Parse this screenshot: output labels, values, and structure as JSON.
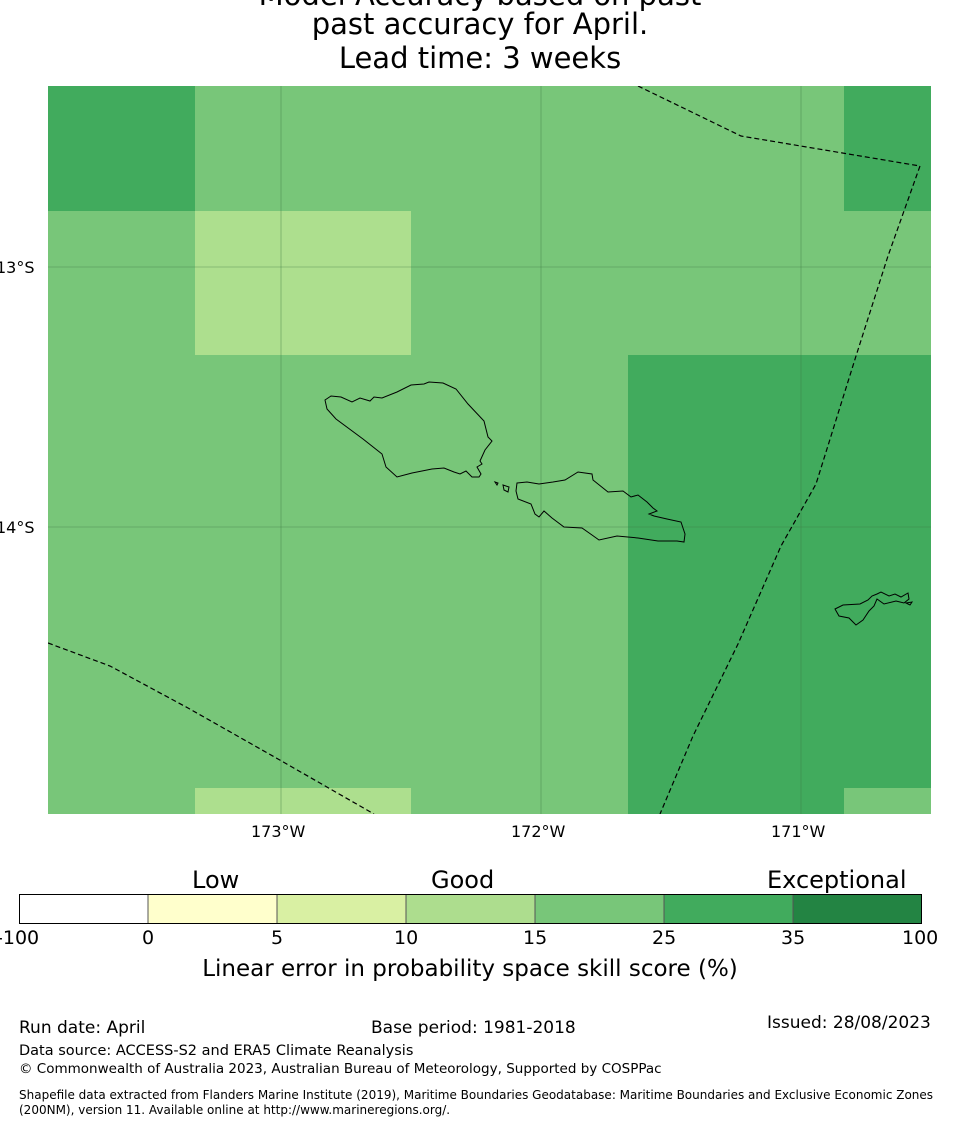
{
  "title": {
    "line1": "Model Accuracy based on past",
    "line2": "past accuracy for April.",
    "line3": "Lead time: 3 weeks"
  },
  "map": {
    "lat_labels": [
      "13°S",
      "14°S"
    ],
    "lon_labels": [
      "173°W",
      "172°W",
      "171°W"
    ],
    "grid_colors": {
      "skill_10_15": "#addf8e",
      "skill_15_25": "#78c679",
      "skill_25_35": "#41ab5d"
    }
  },
  "colorbar": {
    "categories": [
      "Low",
      "Good",
      "Exceptional"
    ],
    "ticks": [
      "-100",
      "0",
      "5",
      "10",
      "15",
      "25",
      "35",
      "100"
    ],
    "colors": [
      "#ffffff",
      "#ffffcc",
      "#d9f0a3",
      "#addd8e",
      "#78c679",
      "#41ab5d",
      "#238443"
    ],
    "label": "Linear error in probability space skill score (%)"
  },
  "footer": {
    "run_date": "Run date: April",
    "base_period": "Base period: 1981-2018",
    "issued": "Issued: 28/08/2023",
    "data_source": "Data source: ACCESS-S2 and ERA5 Climate Reanalysis",
    "copyright": "© Commonwealth of Australia 2023, Australian Bureau of Meteorology, Supported by COSPPac",
    "shapefile": "Shapefile data extracted from Flanders Marine Institute (2019), Maritime Boundaries Geodatabase: Maritime Boundaries and Exclusive Economic Zones (200NM), version 11. Available online at http://www.marineregions.org/."
  }
}
